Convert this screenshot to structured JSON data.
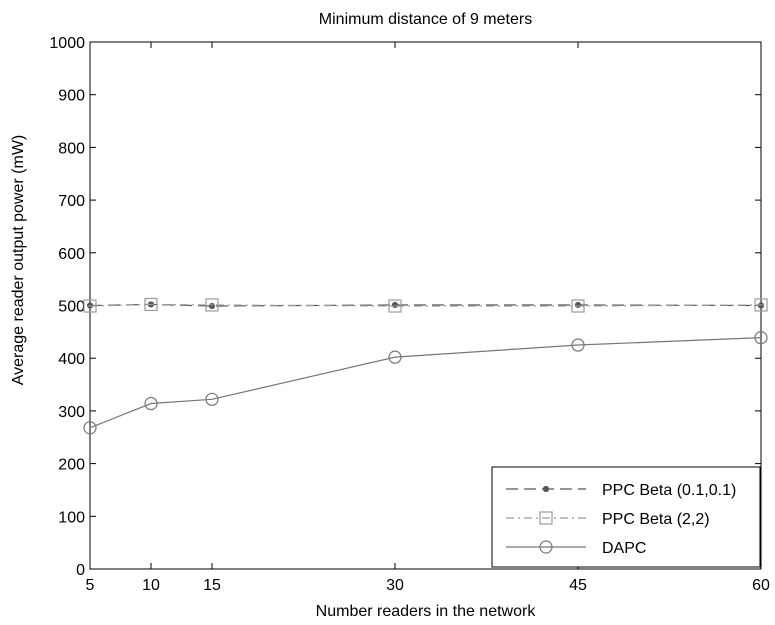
{
  "chart_data": {
    "type": "line",
    "title": "Minimum distance of 9 meters",
    "xlabel": "Number readers in the network",
    "ylabel": "Average reader output power (mW)",
    "x": [
      5,
      10,
      15,
      30,
      45,
      60
    ],
    "xlim": [
      5,
      60
    ],
    "ylim": [
      0,
      1000
    ],
    "xticks": [
      5,
      10,
      15,
      30,
      45,
      60
    ],
    "yticks": [
      0,
      100,
      200,
      300,
      400,
      500,
      600,
      700,
      800,
      900,
      1000
    ],
    "grid": false,
    "legend_position": "bottom-right",
    "series": [
      {
        "name": "PPC Beta (0.1,0.1)",
        "values": [
          500,
          502,
          499,
          501,
          501,
          500
        ],
        "marker": "dot",
        "line_style": "dash",
        "color": "#555555"
      },
      {
        "name": "PPC Beta (2,2)",
        "values": [
          499,
          502,
          501,
          499,
          499,
          501
        ],
        "marker": "square",
        "line_style": "dashdot",
        "color": "#9a9a9a"
      },
      {
        "name": "DAPC",
        "values": [
          268,
          314,
          322,
          402,
          425,
          439
        ],
        "marker": "circle",
        "line_style": "solid",
        "color": "#777777"
      }
    ]
  }
}
